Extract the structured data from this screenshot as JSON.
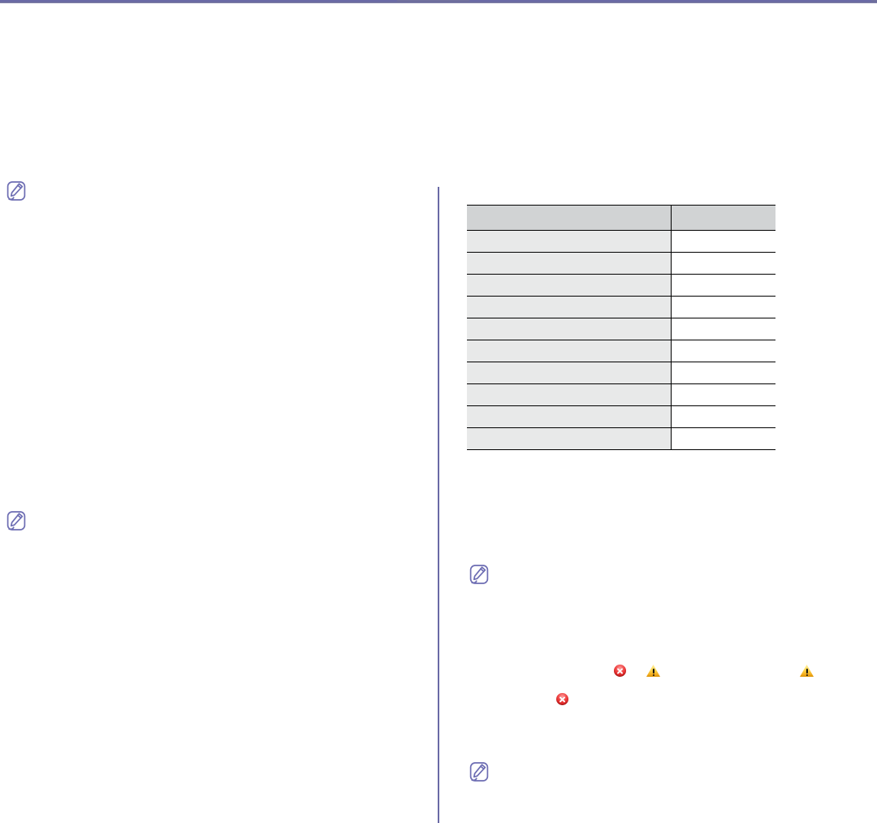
{
  "page": {
    "background_color": "#ffffff",
    "accent_bar_color": "#69699b",
    "rule_color": "#6a6aa6",
    "visible_text": ""
  },
  "icons": {
    "note": {
      "name": "note-pencil-icon",
      "outline_color": "#6d6db3",
      "count": 4
    },
    "error": {
      "name": "error-cross-icon",
      "fill_color": "#d21a1a",
      "glyph_color": "#ffffff",
      "count": 2
    },
    "warning": {
      "name": "warning-triangle-icon",
      "fill_color": "#f5b81e",
      "glyph_color": "#101010",
      "count": 2
    }
  },
  "table": {
    "column_count": 2,
    "row_count": 10,
    "header_bg": "#d1d3d4",
    "label_cell_bg": "#e8e9e9",
    "value_cell_bg": "#ffffff",
    "border_color": "#000000",
    "header": [
      "",
      ""
    ],
    "rows": [
      [
        "",
        ""
      ],
      [
        "",
        ""
      ],
      [
        "",
        ""
      ],
      [
        "",
        ""
      ],
      [
        "",
        ""
      ],
      [
        "",
        ""
      ],
      [
        "",
        ""
      ],
      [
        "",
        ""
      ],
      [
        "",
        ""
      ],
      [
        "",
        ""
      ]
    ]
  }
}
